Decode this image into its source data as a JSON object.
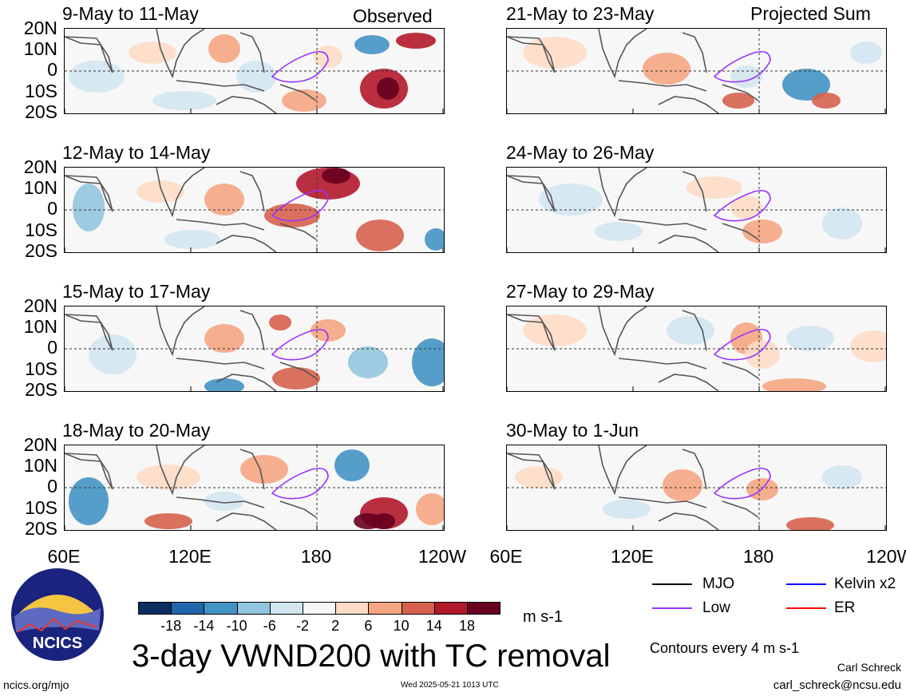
{
  "columns": {
    "left_label": "Observed",
    "right_label": "Projected Sum"
  },
  "panels_left": [
    {
      "title": "9-May to 11-May"
    },
    {
      "title": "12-May to 14-May"
    },
    {
      "title": "15-May to 17-May"
    },
    {
      "title": "18-May to 20-May"
    }
  ],
  "panels_right": [
    {
      "title": "21-May to 23-May"
    },
    {
      "title": "24-May to 26-May"
    },
    {
      "title": "27-May to 29-May"
    },
    {
      "title": "30-May to 1-Jun"
    }
  ],
  "lat_labels": [
    "20N",
    "10N",
    "0",
    "10S",
    "20S"
  ],
  "lon_labels": [
    "60E",
    "120E",
    "180",
    "120W"
  ],
  "main_title": "3-day VWND200 with TC removal",
  "colorbar": {
    "units": "m s-1",
    "ticks": [
      "-18",
      "-14",
      "-10",
      "-6",
      "-2",
      "2",
      "6",
      "10",
      "14",
      "18"
    ],
    "colors": [
      "#0b2f5e",
      "#2166ac",
      "#4393c3",
      "#92c5de",
      "#d1e5f0",
      "#f7f7f7",
      "#fddbc7",
      "#f4a582",
      "#d6604d",
      "#b2182b",
      "#67001f"
    ]
  },
  "legend": {
    "mjo": {
      "label": "MJO",
      "color": "#000000"
    },
    "low": {
      "label": "Low",
      "color": "#9933ff"
    },
    "kelvin": {
      "label": "Kelvin x2",
      "color": "#0000ff"
    },
    "er": {
      "label": "ER",
      "color": "#ff0000"
    }
  },
  "contour_note": "Contours every 4 m s-1",
  "author": "Carl Schreck",
  "email": "carl_schreck@ncsu.edu",
  "site": "ncics.org/mjo",
  "timestamp": "Wed 2025-05-21 1013 UTC",
  "logo_text": "NCICS"
}
